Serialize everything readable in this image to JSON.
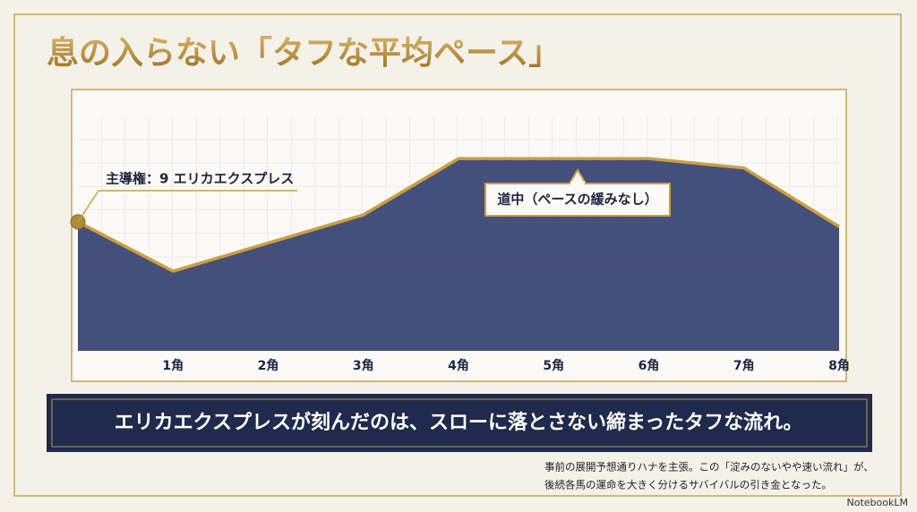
{
  "title": "息の入らない「タフな平均ペース」",
  "chart_data": {
    "type": "area",
    "categories": [
      null,
      "1角",
      "2角",
      "3角",
      "4角",
      "5角",
      "6角",
      "7角",
      "8角"
    ],
    "values": [
      55,
      34,
      46,
      58,
      82,
      82,
      82,
      78,
      53
    ],
    "ylim": [
      0,
      100
    ],
    "color": "#c9a043",
    "fill": "#3b4674",
    "annotations": [
      "主導権：9 エリカエクスプレス",
      "道中（ペースの緩みなし）"
    ]
  },
  "banner": "エリカエクスプレスが刻んだのは、スローに落とさない締まったタフな流れ。",
  "footnote": [
    "事前の展開予想通りハナを主張。この「淀みのないやや速い流れ」が、",
    "後続各馬の運命を大きく分けるサバイバルの引き金となった。"
  ],
  "watermark": "NotebookLM"
}
